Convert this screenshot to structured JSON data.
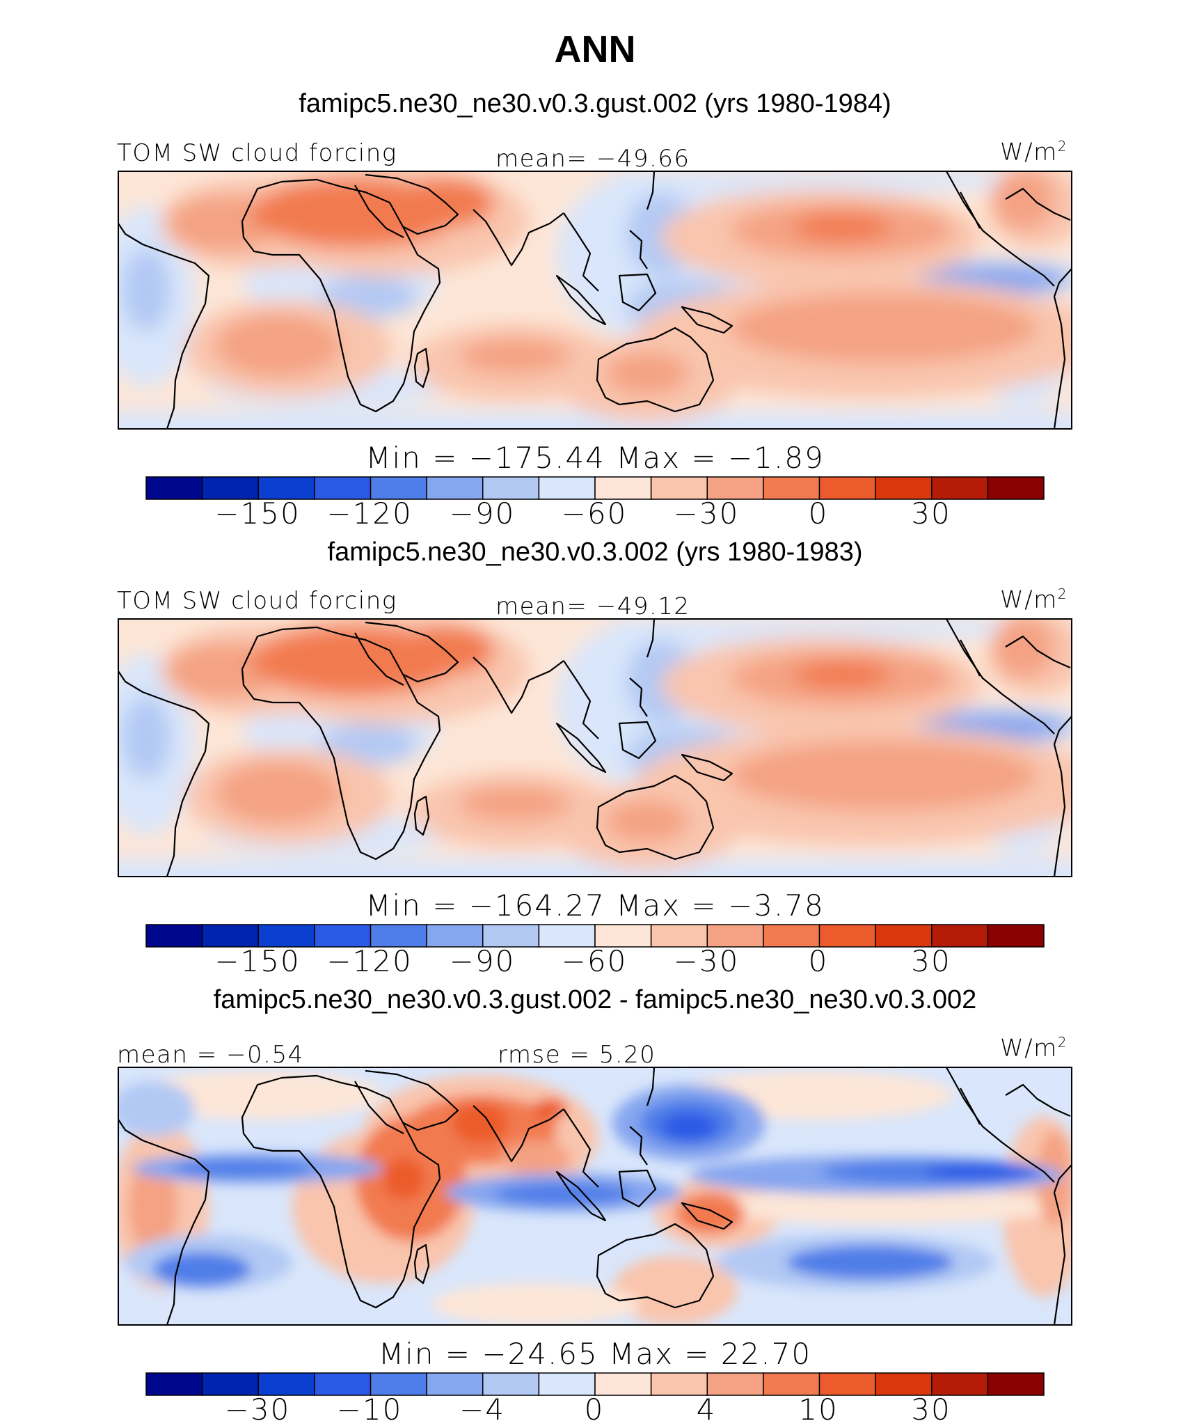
{
  "title": "ANN",
  "chart_data": [
    {
      "type": "heatmap",
      "title": "famipc5.ne30_ne30.v0.3.gust.002 (yrs 1980-1984)",
      "variable": "TOM SW cloud forcing",
      "units_base": "W/m",
      "units_exp": "2",
      "mean_text": "mean= −49.66",
      "minmax_text": "Min = −175.44 Max =   −1.89",
      "min": -175.44,
      "max": -1.89,
      "mean": -49.66,
      "colorbar_labels": [
        "−150",
        "−120",
        "−90",
        "−60",
        "−30",
        "0",
        "30"
      ],
      "colorbar_levels": [
        -165,
        -150,
        -135,
        -120,
        -105,
        -90,
        -75,
        -60,
        -45,
        -30,
        -15,
        0,
        15,
        30,
        45
      ]
    },
    {
      "type": "heatmap",
      "title": "famipc5.ne30_ne30.v0.3.002 (yrs 1980-1983)",
      "variable": "TOM SW cloud forcing",
      "units_base": "W/m",
      "units_exp": "2",
      "mean_text": "mean= −49.12",
      "minmax_text": "Min = −164.27 Max =   −3.78",
      "min": -164.27,
      "max": -3.78,
      "mean": -49.12,
      "colorbar_labels": [
        "−150",
        "−120",
        "−90",
        "−60",
        "−30",
        "0",
        "30"
      ],
      "colorbar_levels": [
        -165,
        -150,
        -135,
        -120,
        -105,
        -90,
        -75,
        -60,
        -45,
        -30,
        -15,
        0,
        15,
        30,
        45
      ]
    },
    {
      "type": "heatmap",
      "title": "famipc5.ne30_ne30.v0.3.gust.002 - famipc5.ne30_ne30.v0.3.002",
      "units_base": "W/m",
      "units_exp": "2",
      "mean_text": "mean =  −0.54",
      "rmse_text": "rmse =   5.20",
      "minmax_text": "Min = −24.65 Max =  22.70",
      "min": -24.65,
      "max": 22.7,
      "mean": -0.54,
      "rmse": 5.2,
      "colorbar_labels": [
        "−30",
        "−10",
        "−4",
        "0",
        "4",
        "10",
        "30"
      ]
    }
  ],
  "colors": {
    "palette": [
      "#00078f",
      "#0024b0",
      "#0b3fcf",
      "#2a5ae6",
      "#4f7ee8",
      "#86a6ef",
      "#b2c9f4",
      "#d9e6fb",
      "#fde6d7",
      "#f9c5ad",
      "#f4a283",
      "#f27a50",
      "#ec5b2c",
      "#d9380f",
      "#b41c07",
      "#8b0000"
    ],
    "land_line": "#000000"
  }
}
